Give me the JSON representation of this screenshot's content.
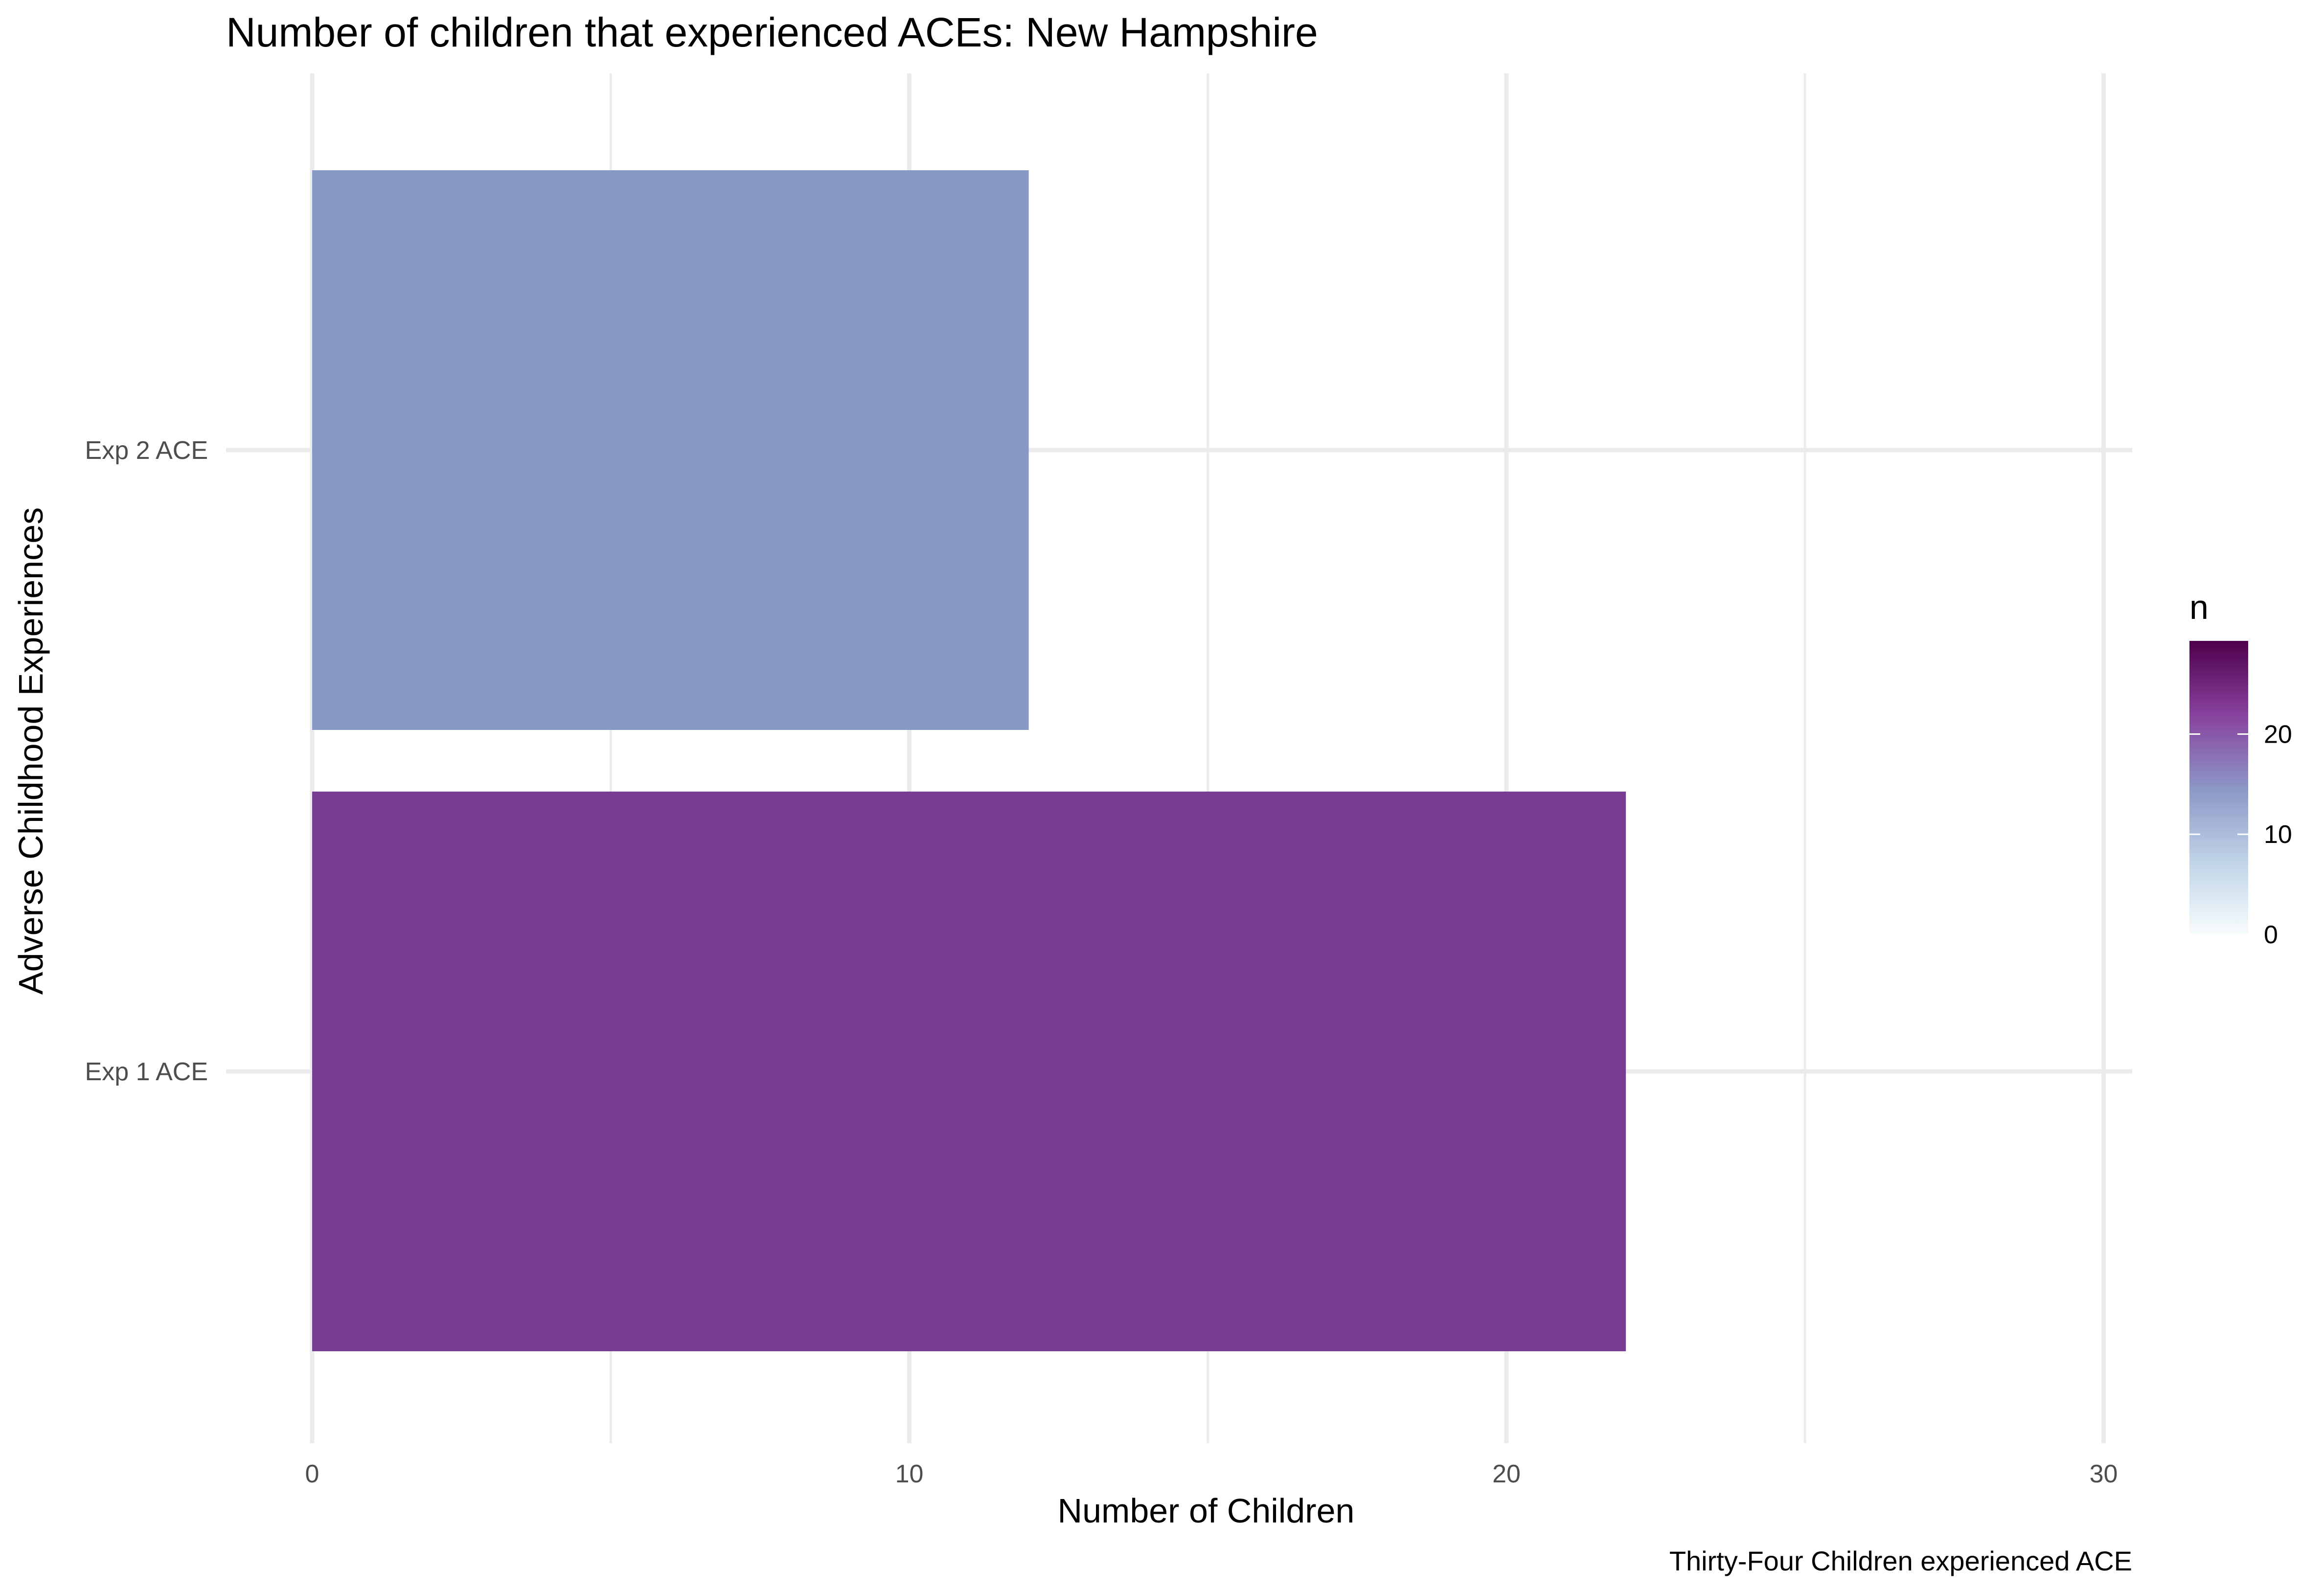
{
  "chart_data": {
    "type": "bar",
    "orientation": "horizontal",
    "title": "Number of children that experienced ACEs: New Hampshire",
    "xlabel": "Number of Children",
    "ylabel": "Adverse Childhood Experiences",
    "caption": "Thirty-Four Children experienced ACE",
    "categories": [
      "Exp 1 ACE",
      "Exp 2 ACE"
    ],
    "values": [
      22,
      12
    ],
    "xlim": [
      0,
      30.45
    ],
    "xticks": [
      0,
      10,
      20,
      30
    ],
    "xtick_labels": [
      "0",
      "10",
      "20",
      "30"
    ],
    "grid": true,
    "legend": {
      "title": "n",
      "placement": "right",
      "type": "colorbar",
      "range": [
        0,
        29.3
      ],
      "ticks": [
        0,
        10,
        20
      ],
      "tick_labels": [
        "0",
        "10",
        "20"
      ],
      "colors": [
        "#f7fcfd",
        "#bfd3e6",
        "#8c96c6",
        "#88419d",
        "#4d004b"
      ]
    },
    "bar_colors": [
      "#773d91",
      "#8699c5"
    ]
  }
}
